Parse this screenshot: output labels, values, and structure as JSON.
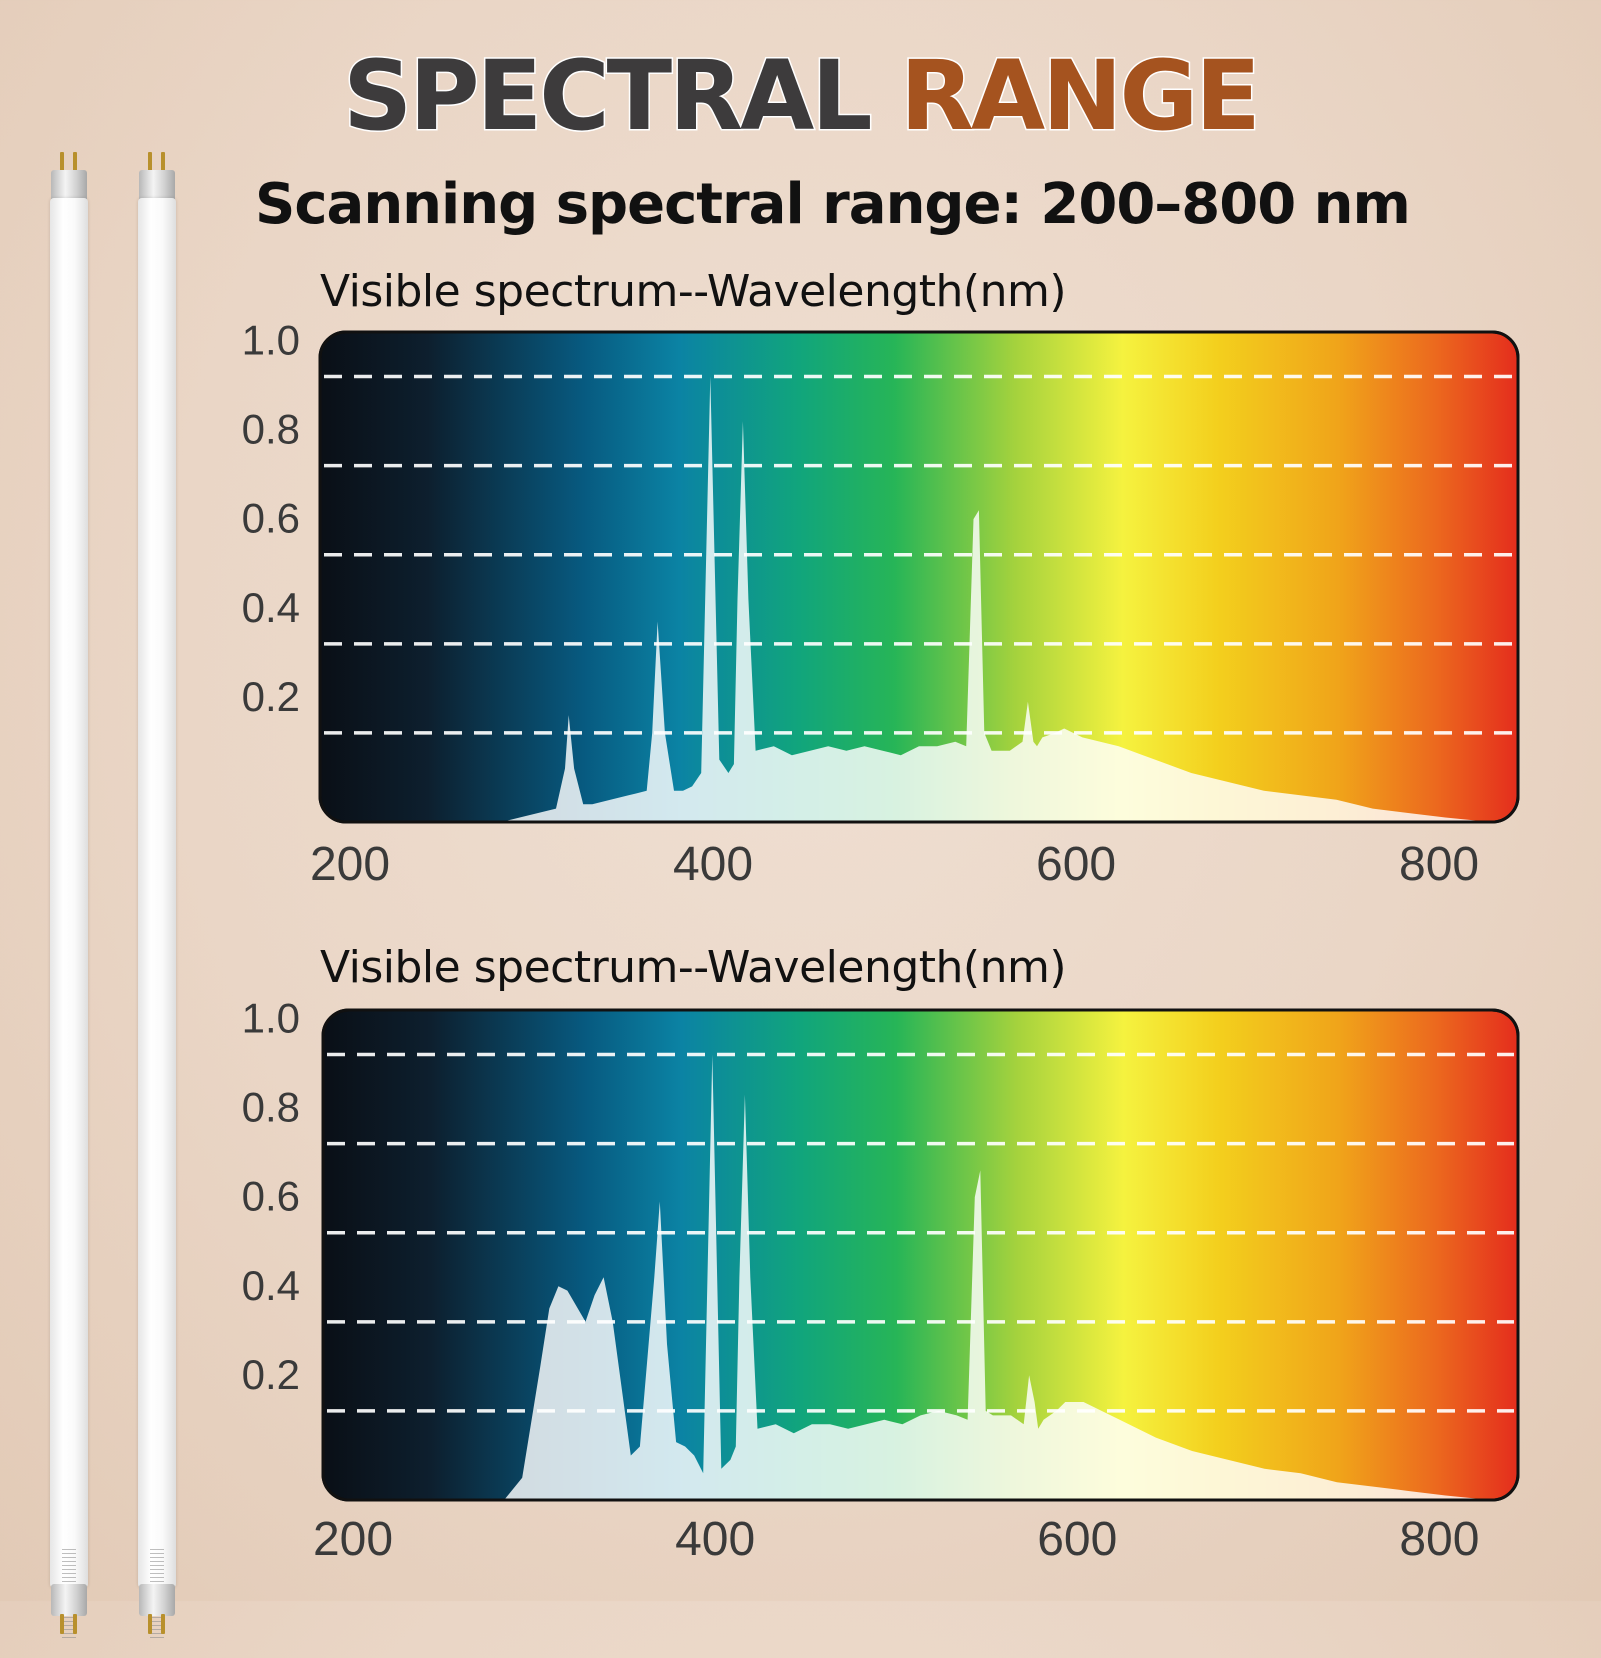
{
  "header": {
    "title_part1": "SPECTRAL",
    "title_part2": "RANGE",
    "subtitle": "Scanning spectral range: 200–800 nm"
  },
  "colors": {
    "title_dark": "#3d3b3c",
    "title_accent": "#a5531f",
    "background": "#ead6c6"
  },
  "chart_data": [
    {
      "type": "area",
      "title": "Visible spectrum--Wavelength(nm)",
      "xlabel": "",
      "ylabel": "",
      "xlim": [
        200,
        860
      ],
      "ylim": [
        0,
        1.1
      ],
      "x_ticks": [
        200,
        400,
        600,
        800
      ],
      "y_ticks": [
        1.0,
        0.8,
        0.6,
        0.4,
        0.2
      ],
      "gridlines": [
        0.2,
        0.4,
        0.6,
        0.8,
        1.0
      ],
      "grid": true,
      "series": [
        {
          "x": [
            200,
            300,
            310,
            330,
            335,
            337,
            340,
            345,
            350,
            360,
            370,
            380,
            383,
            386,
            390,
            395,
            400,
            405,
            410,
            415,
            420,
            425,
            428,
            430,
            433,
            436,
            440,
            450,
            460,
            470,
            480,
            490,
            500,
            510,
            520,
            530,
            540,
            550,
            556,
            560,
            563,
            566,
            570,
            580,
            587,
            590,
            593,
            595,
            598,
            605,
            610,
            620,
            640,
            660,
            680,
            700,
            720,
            740,
            760,
            780,
            800,
            820,
            845
          ],
          "y": [
            0,
            0,
            0.01,
            0.03,
            0.12,
            0.24,
            0.12,
            0.04,
            0.04,
            0.05,
            0.06,
            0.07,
            0.2,
            0.45,
            0.2,
            0.07,
            0.07,
            0.08,
            0.11,
            1.0,
            0.14,
            0.11,
            0.13,
            0.5,
            0.9,
            0.5,
            0.16,
            0.17,
            0.15,
            0.16,
            0.17,
            0.16,
            0.17,
            0.16,
            0.15,
            0.17,
            0.17,
            0.18,
            0.17,
            0.68,
            0.7,
            0.2,
            0.16,
            0.16,
            0.18,
            0.27,
            0.18,
            0.17,
            0.19,
            0.2,
            0.21,
            0.19,
            0.17,
            0.14,
            0.11,
            0.09,
            0.07,
            0.06,
            0.05,
            0.03,
            0.02,
            0.01,
            0
          ]
        }
      ]
    },
    {
      "type": "area",
      "title": "Visible spectrum--Wavelength(nm)",
      "xlabel": "",
      "ylabel": "",
      "xlim": [
        200,
        860
      ],
      "ylim": [
        0,
        1.1
      ],
      "x_ticks": [
        200,
        400,
        600,
        800
      ],
      "y_ticks": [
        1.0,
        0.8,
        0.6,
        0.4,
        0.2
      ],
      "gridlines": [
        0.2,
        0.4,
        0.6,
        0.8,
        1.0
      ],
      "grid": true,
      "series": [
        {
          "x": [
            200,
            300,
            310,
            320,
            325,
            330,
            335,
            345,
            350,
            355,
            360,
            370,
            375,
            383,
            386,
            390,
            395,
            400,
            405,
            410,
            415,
            420,
            425,
            428,
            430,
            433,
            436,
            440,
            450,
            460,
            470,
            480,
            490,
            500,
            510,
            520,
            530,
            540,
            550,
            556,
            560,
            563,
            566,
            570,
            580,
            587,
            590,
            593,
            595,
            598,
            605,
            610,
            620,
            640,
            660,
            680,
            700,
            720,
            740,
            760,
            780,
            800,
            820,
            845
          ],
          "y": [
            0,
            0,
            0.05,
            0.3,
            0.43,
            0.48,
            0.47,
            0.4,
            0.46,
            0.5,
            0.4,
            0.1,
            0.12,
            0.5,
            0.67,
            0.35,
            0.13,
            0.12,
            0.1,
            0.06,
            1.0,
            0.07,
            0.09,
            0.12,
            0.5,
            0.91,
            0.5,
            0.16,
            0.17,
            0.15,
            0.17,
            0.17,
            0.16,
            0.17,
            0.18,
            0.17,
            0.19,
            0.2,
            0.19,
            0.18,
            0.68,
            0.74,
            0.2,
            0.19,
            0.19,
            0.17,
            0.28,
            0.22,
            0.16,
            0.18,
            0.2,
            0.22,
            0.22,
            0.18,
            0.14,
            0.11,
            0.09,
            0.07,
            0.06,
            0.04,
            0.03,
            0.02,
            0.01,
            0
          ]
        }
      ]
    }
  ]
}
